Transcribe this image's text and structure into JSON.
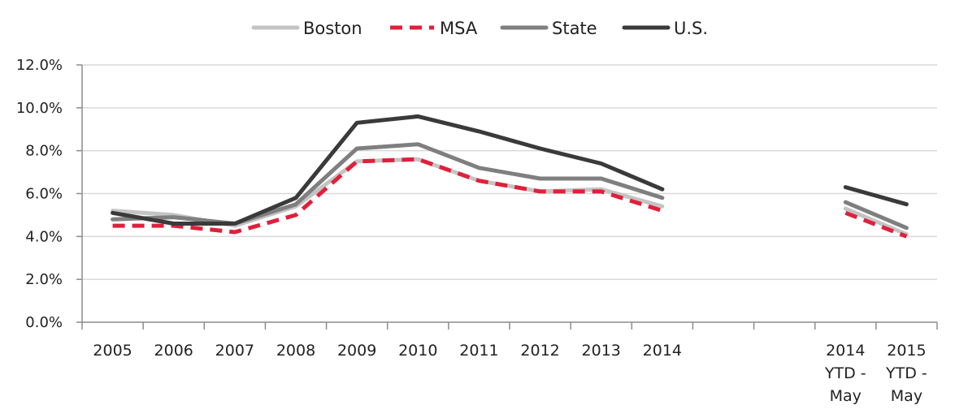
{
  "chart_data": {
    "type": "line",
    "categories": [
      "2005",
      "2006",
      "2007",
      "2008",
      "2009",
      "2010",
      "2011",
      "2012",
      "2013",
      "2014",
      "",
      "",
      "2014 YTD - May",
      "2015 YTD - May"
    ],
    "category_lines": [
      [
        "2005"
      ],
      [
        "2006"
      ],
      [
        "2007"
      ],
      [
        "2008"
      ],
      [
        "2009"
      ],
      [
        "2010"
      ],
      [
        "2011"
      ],
      [
        "2012"
      ],
      [
        "2013"
      ],
      [
        "2014"
      ],
      [],
      [],
      [
        "2014",
        "YTD -",
        "May"
      ],
      [
        "2015",
        "YTD -",
        "May"
      ]
    ],
    "y_ticks": [
      "0.0%",
      "2.0%",
      "4.0%",
      "6.0%",
      "8.0%",
      "10.0%",
      "12.0%"
    ],
    "ylim": [
      0,
      12
    ],
    "y_unit": "%",
    "legend_position": "top-center",
    "grid": true,
    "series": [
      {
        "name": "Boston",
        "color": "#c4c4c4",
        "dashed": false,
        "values": [
          5.2,
          5.0,
          4.5,
          5.4,
          7.5,
          7.6,
          6.6,
          6.1,
          6.2,
          5.4,
          null,
          null,
          5.3,
          4.1
        ]
      },
      {
        "name": "MSA",
        "color": "#e0203b",
        "dashed": true,
        "values": [
          4.5,
          4.5,
          4.2,
          5.0,
          7.5,
          7.6,
          6.6,
          6.1,
          6.1,
          5.2,
          null,
          null,
          5.1,
          4.0
        ]
      },
      {
        "name": "State",
        "color": "#7f7f7f",
        "dashed": false,
        "values": [
          4.8,
          4.9,
          4.6,
          5.5,
          8.1,
          8.3,
          7.2,
          6.7,
          6.7,
          5.8,
          null,
          null,
          5.6,
          4.4
        ]
      },
      {
        "name": "U.S.",
        "color": "#3a3a3a",
        "dashed": false,
        "values": [
          5.1,
          4.6,
          4.6,
          5.8,
          9.3,
          9.6,
          8.9,
          8.1,
          7.4,
          6.2,
          null,
          null,
          6.3,
          5.5
        ]
      }
    ]
  }
}
